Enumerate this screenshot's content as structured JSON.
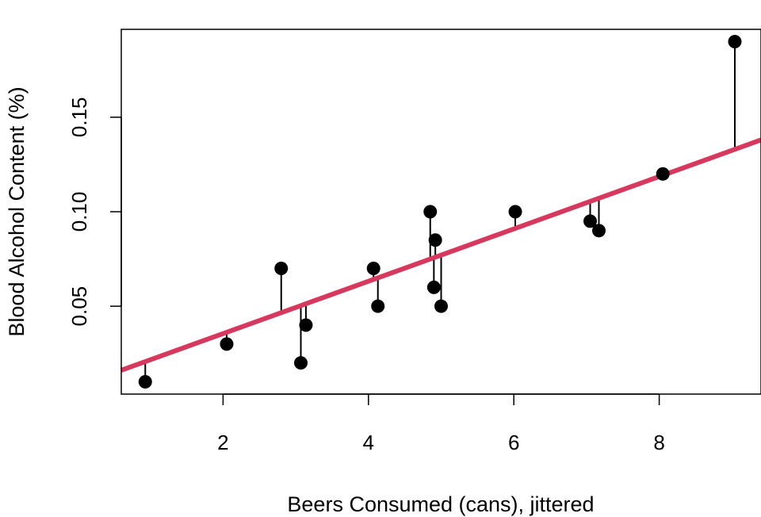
{
  "chart_data": {
    "type": "scatter",
    "title": "",
    "xlabel": "Beers Consumed (cans), jittered",
    "ylabel": "Blood Alcohol Content (%)",
    "xlim": [
      0.6,
      9.4
    ],
    "ylim": [
      0.0035,
      0.1965
    ],
    "x_ticks": [
      2,
      4,
      6,
      8
    ],
    "x_tick_labels": [
      "2",
      "4",
      "6",
      "8"
    ],
    "y_ticks": [
      0.05,
      0.1,
      0.15
    ],
    "y_tick_labels": [
      "0.05",
      "0.10",
      "0.15"
    ],
    "grid": false,
    "legend": "none",
    "points": [
      {
        "x": 0.93,
        "y": 0.01
      },
      {
        "x": 2.05,
        "y": 0.03
      },
      {
        "x": 2.8,
        "y": 0.07
      },
      {
        "x": 3.07,
        "y": 0.02
      },
      {
        "x": 3.14,
        "y": 0.04
      },
      {
        "x": 4.07,
        "y": 0.07
      },
      {
        "x": 4.13,
        "y": 0.05
      },
      {
        "x": 4.85,
        "y": 0.1
      },
      {
        "x": 4.9,
        "y": 0.06
      },
      {
        "x": 4.92,
        "y": 0.085
      },
      {
        "x": 5.0,
        "y": 0.05
      },
      {
        "x": 6.02,
        "y": 0.1
      },
      {
        "x": 7.05,
        "y": 0.095
      },
      {
        "x": 7.17,
        "y": 0.09
      },
      {
        "x": 8.05,
        "y": 0.12
      },
      {
        "x": 9.04,
        "y": 0.19
      }
    ],
    "fit_line": {
      "intercept": 0.0078,
      "slope": 0.01385
    },
    "residual_segments": true,
    "colors": {
      "points": "#000000",
      "fit_line": "#D7385E",
      "residuals": "#000000"
    }
  }
}
